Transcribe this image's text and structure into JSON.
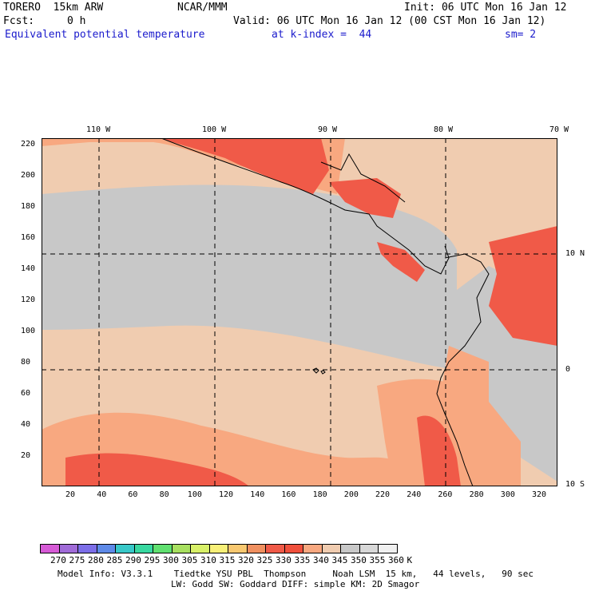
{
  "header": {
    "model": "TORERO  15km ARW",
    "org": "NCAR/MMM",
    "init": "Init: 06 UTC Mon 16 Jan 12",
    "fcst_label": "Fcst:",
    "fcst_value": "0 h",
    "valid": "Valid: 06 UTC Mon 16 Jan 12 (00 CST Mon 16 Jan 12)",
    "field": "Equivalent potential temperature",
    "level": "at k-index =  44",
    "smooth": "sm= 2"
  },
  "map": {
    "lon_labels": [
      "110 W",
      "100 W",
      "90 W",
      "80 W",
      "70 W"
    ],
    "lat_labels": [
      "10 N",
      "0",
      "10 S"
    ],
    "y_ticks": [
      "220",
      "200",
      "180",
      "160",
      "140",
      "120",
      "100",
      "80",
      "60",
      "40",
      "20"
    ],
    "x_ticks": [
      "20",
      "40",
      "60",
      "80",
      "100",
      "120",
      "140",
      "160",
      "180",
      "200",
      "220",
      "240",
      "260",
      "280",
      "300",
      "320"
    ]
  },
  "legend": {
    "labels": [
      "270",
      "275",
      "280",
      "285",
      "290",
      "295",
      "300",
      "305",
      "310",
      "315",
      "320",
      "325",
      "330",
      "335",
      "340",
      "345",
      "350",
      "355",
      "360",
      "K"
    ],
    "colors": [
      "#d65ad6",
      "#a06bd8",
      "#7c6ee8",
      "#5e8ae8",
      "#38c8c8",
      "#38d8a0",
      "#60e070",
      "#a8e060",
      "#d8f068",
      "#f8f078",
      "#f8c870",
      "#f09060",
      "#f05a48",
      "#f0503c",
      "#f8a880",
      "#f0ccb0",
      "#c8c8c8",
      "#d8d8d8",
      "#f0f0f0"
    ]
  },
  "footer": {
    "line1": "Model Info: V3.3.1    Tiedtke YSU PBL  Thompson     Noah LSM  15 km,   44 levels,   90 sec",
    "line2": "LW: Godd SW: Goddard DIFF: simple KM: 2D Smagor"
  }
}
